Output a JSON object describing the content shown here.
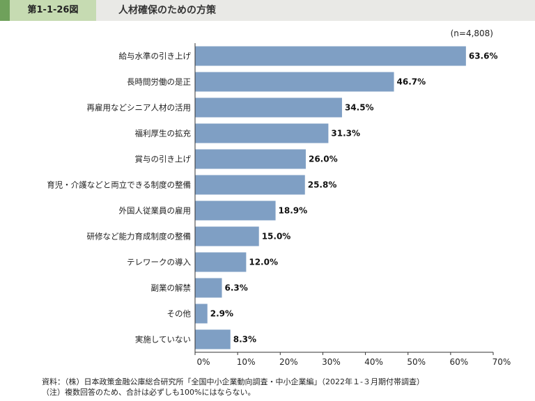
{
  "header": {
    "figure_number": "第1-1-26図",
    "title": "人材確保のための方策"
  },
  "chart_data": {
    "type": "bar",
    "orientation": "horizontal",
    "title": "人材確保のための方策",
    "sample_note": "(n=4,808)",
    "categories": [
      "給与水準の引き上げ",
      "長時間労働の是正",
      "再雇用などシニア人材の活用",
      "福利厚生の拡充",
      "賞与の引き上げ",
      "育児・介護などと両立できる制度の整備",
      "外国人従業員の雇用",
      "研修など能力育成制度の整備",
      "テレワークの導入",
      "副業の解禁",
      "その他",
      "実施していない"
    ],
    "values": [
      63.6,
      46.7,
      34.5,
      31.3,
      26.0,
      25.8,
      18.9,
      15.0,
      12.0,
      6.3,
      2.9,
      8.3
    ],
    "value_labels": [
      "63.6%",
      "46.7%",
      "34.5%",
      "31.3%",
      "26.0%",
      "25.8%",
      "18.9%",
      "15.0%",
      "12.0%",
      "6.3%",
      "2.9%",
      "8.3%"
    ],
    "xlim": [
      0,
      70
    ],
    "xticks": [
      0,
      10,
      20,
      30,
      40,
      50,
      60,
      70
    ],
    "xtick_labels": [
      "0%",
      "10%",
      "20%",
      "30%",
      "40%",
      "50%",
      "60%",
      "70%"
    ],
    "bar_color": "#7f9fc4",
    "grid": false
  },
  "notes": {
    "source": "資料：（株）日本政策金融公庫総合研究所「全国中小企業動向調査・中小企業編」（2022年１-３月期付帯調査）",
    "remark": "（注）複数回答のため、合計は必ずしも100%にはならない。"
  }
}
